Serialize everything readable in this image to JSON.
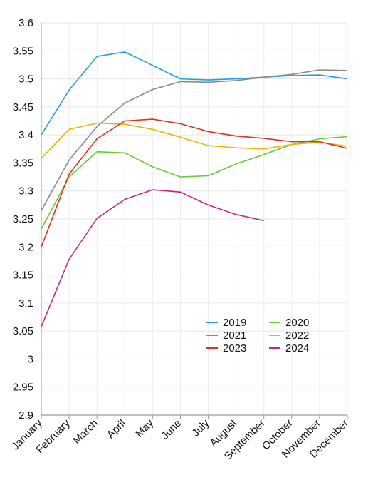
{
  "chart_data": {
    "type": "line",
    "categories": [
      "January",
      "February",
      "March",
      "April",
      "May",
      "June",
      "July",
      "August",
      "September",
      "October",
      "November",
      "December"
    ],
    "ylim": [
      2.9,
      3.6
    ],
    "yticks": [
      "2.9",
      "2.95",
      "3",
      "3.05",
      "3.1",
      "3.15",
      "3.2",
      "3.25",
      "3.3",
      "3.35",
      "3.4",
      "3.45",
      "3.5",
      "3.55",
      "3.6"
    ],
    "grid": true,
    "legend_position": "lower-right",
    "series": [
      {
        "name": "2019",
        "color": "#1ba1e2",
        "values": [
          3.4,
          3.48,
          3.54,
          3.548,
          3.524,
          3.5,
          3.498,
          3.5,
          3.503,
          3.506,
          3.507,
          3.5
        ]
      },
      {
        "name": "2020",
        "color": "#66cc33",
        "values": [
          3.232,
          3.325,
          3.37,
          3.368,
          3.343,
          3.325,
          3.327,
          3.348,
          3.365,
          3.383,
          3.393,
          3.397
        ]
      },
      {
        "name": "2021",
        "color": "#888888",
        "values": [
          3.265,
          3.355,
          3.415,
          3.457,
          3.481,
          3.495,
          3.494,
          3.497,
          3.503,
          3.508,
          3.516,
          3.515
        ]
      },
      {
        "name": "2022",
        "color": "#f0b400",
        "values": [
          3.358,
          3.41,
          3.421,
          3.419,
          3.41,
          3.396,
          3.381,
          3.377,
          3.375,
          3.383,
          3.387,
          3.38
        ]
      },
      {
        "name": "2023",
        "color": "#e0311a",
        "values": [
          3.2,
          3.33,
          3.393,
          3.425,
          3.428,
          3.42,
          3.406,
          3.398,
          3.394,
          3.388,
          3.388,
          3.376
        ]
      },
      {
        "name": "2024",
        "color": "#c2268e",
        "values": [
          3.058,
          3.178,
          3.251,
          3.285,
          3.302,
          3.298,
          3.275,
          3.258,
          3.247,
          null,
          null,
          null
        ]
      }
    ]
  }
}
